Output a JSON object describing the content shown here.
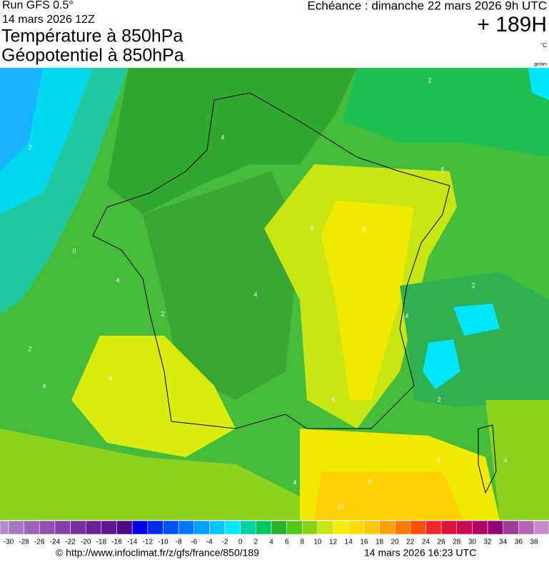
{
  "header": {
    "run": "Run GFS 0.5°",
    "run_date": "14 mars 2026 12Z",
    "title": "Température à 850hPa",
    "subtitle": "Géopotentiel à 850hPa",
    "valid_time": "Echéance : dimanche 22 mars 2026 9h UTC",
    "lead_time": "+ 189H",
    "unit": "°C",
    "contour_unit": "gpdam"
  },
  "map": {
    "contour_labels": [
      "2",
      "4",
      "2",
      "0",
      "4",
      "2",
      "4",
      "6",
      "6",
      "8",
      "4",
      "2",
      "4",
      "6",
      "6",
      "8",
      "10",
      "2",
      "2",
      "4",
      "6",
      "4"
    ]
  },
  "colorbar": {
    "ticks": [
      -30,
      -28,
      -26,
      -24,
      -22,
      -20,
      -18,
      -16,
      -14,
      -12,
      -10,
      -8,
      -6,
      -4,
      -2,
      0,
      2,
      4,
      6,
      8,
      10,
      12,
      14,
      16,
      18,
      20,
      22,
      24,
      26,
      28,
      30,
      32,
      34,
      36,
      38
    ],
    "colors": [
      "#b48cc8",
      "#a878c0",
      "#9c64b8",
      "#9050b0",
      "#8440a8",
      "#7830a0",
      "#6c2098",
      "#601490",
      "#500a88",
      "#0000e6",
      "#0028f0",
      "#0050ff",
      "#0078ff",
      "#00a0ff",
      "#00c8ff",
      "#00e6ff",
      "#00d2a0",
      "#00c85a",
      "#28b428",
      "#50c814",
      "#8cd214",
      "#c8e614",
      "#f0f000",
      "#ffdc00",
      "#ffc800",
      "#ffa000",
      "#ff7800",
      "#ff5000",
      "#f02828",
      "#dc143c",
      "#c80a50",
      "#b40064",
      "#960078",
      "#a03c96",
      "#b464b4",
      "#c88cc8"
    ]
  },
  "footer": {
    "url": "© http://www.infoclimat.fr/z/gfs/france/850/189",
    "generated": "14 mars 2026 16:23 UTC"
  }
}
